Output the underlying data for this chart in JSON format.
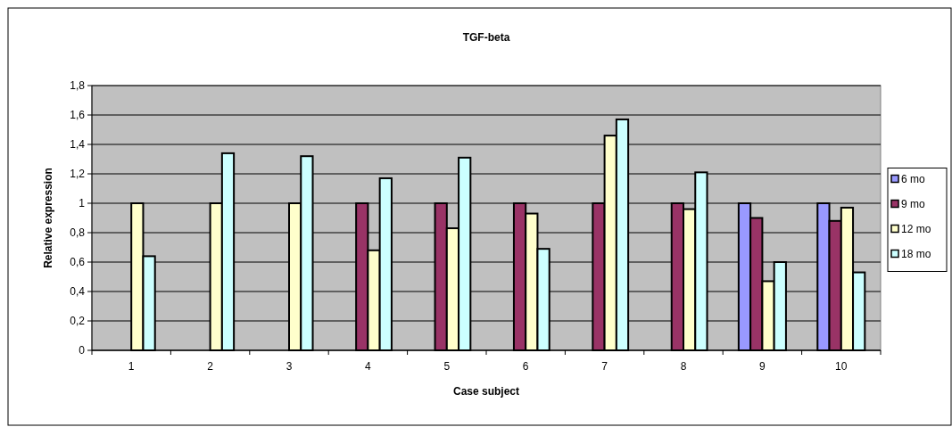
{
  "chart_data": {
    "type": "bar",
    "title": "TGF-beta",
    "xlabel": "Case subject",
    "ylabel": "Relative expression",
    "categories": [
      "1",
      "2",
      "3",
      "4",
      "5",
      "6",
      "7",
      "8",
      "9",
      "10"
    ],
    "series": [
      {
        "name": "6 mo",
        "color": "#9999ff",
        "values": [
          null,
          null,
          null,
          null,
          null,
          null,
          null,
          null,
          1,
          1
        ]
      },
      {
        "name": "9 mo",
        "color": "#993366",
        "values": [
          null,
          null,
          null,
          1,
          1,
          1,
          1,
          1,
          0.9,
          0.88
        ]
      },
      {
        "name": "12 mo",
        "color": "#ffffcc",
        "values": [
          1,
          1,
          1,
          0.68,
          0.83,
          0.93,
          1.46,
          0.96,
          0.47,
          0.97
        ]
      },
      {
        "name": "18 mo",
        "color": "#ccffff",
        "values": [
          0.64,
          1.34,
          1.32,
          1.17,
          1.31,
          0.69,
          1.57,
          1.21,
          0.6,
          0.53
        ]
      }
    ],
    "ylim": [
      0,
      1.8
    ],
    "yticks": [
      0,
      {
        "value": 0.2,
        "label": "0,2"
      },
      {
        "value": 0.4,
        "label": "0,4"
      },
      {
        "value": 0.6,
        "label": "0,6"
      },
      {
        "value": 0.8,
        "label": "0,8"
      },
      1,
      {
        "value": 1.2,
        "label": "1,2"
      },
      {
        "value": 1.4,
        "label": "1,4"
      },
      {
        "value": 1.6,
        "label": "1,6"
      },
      {
        "value": 1.8,
        "label": "1,8"
      }
    ],
    "grid": "y",
    "legend": "right"
  }
}
